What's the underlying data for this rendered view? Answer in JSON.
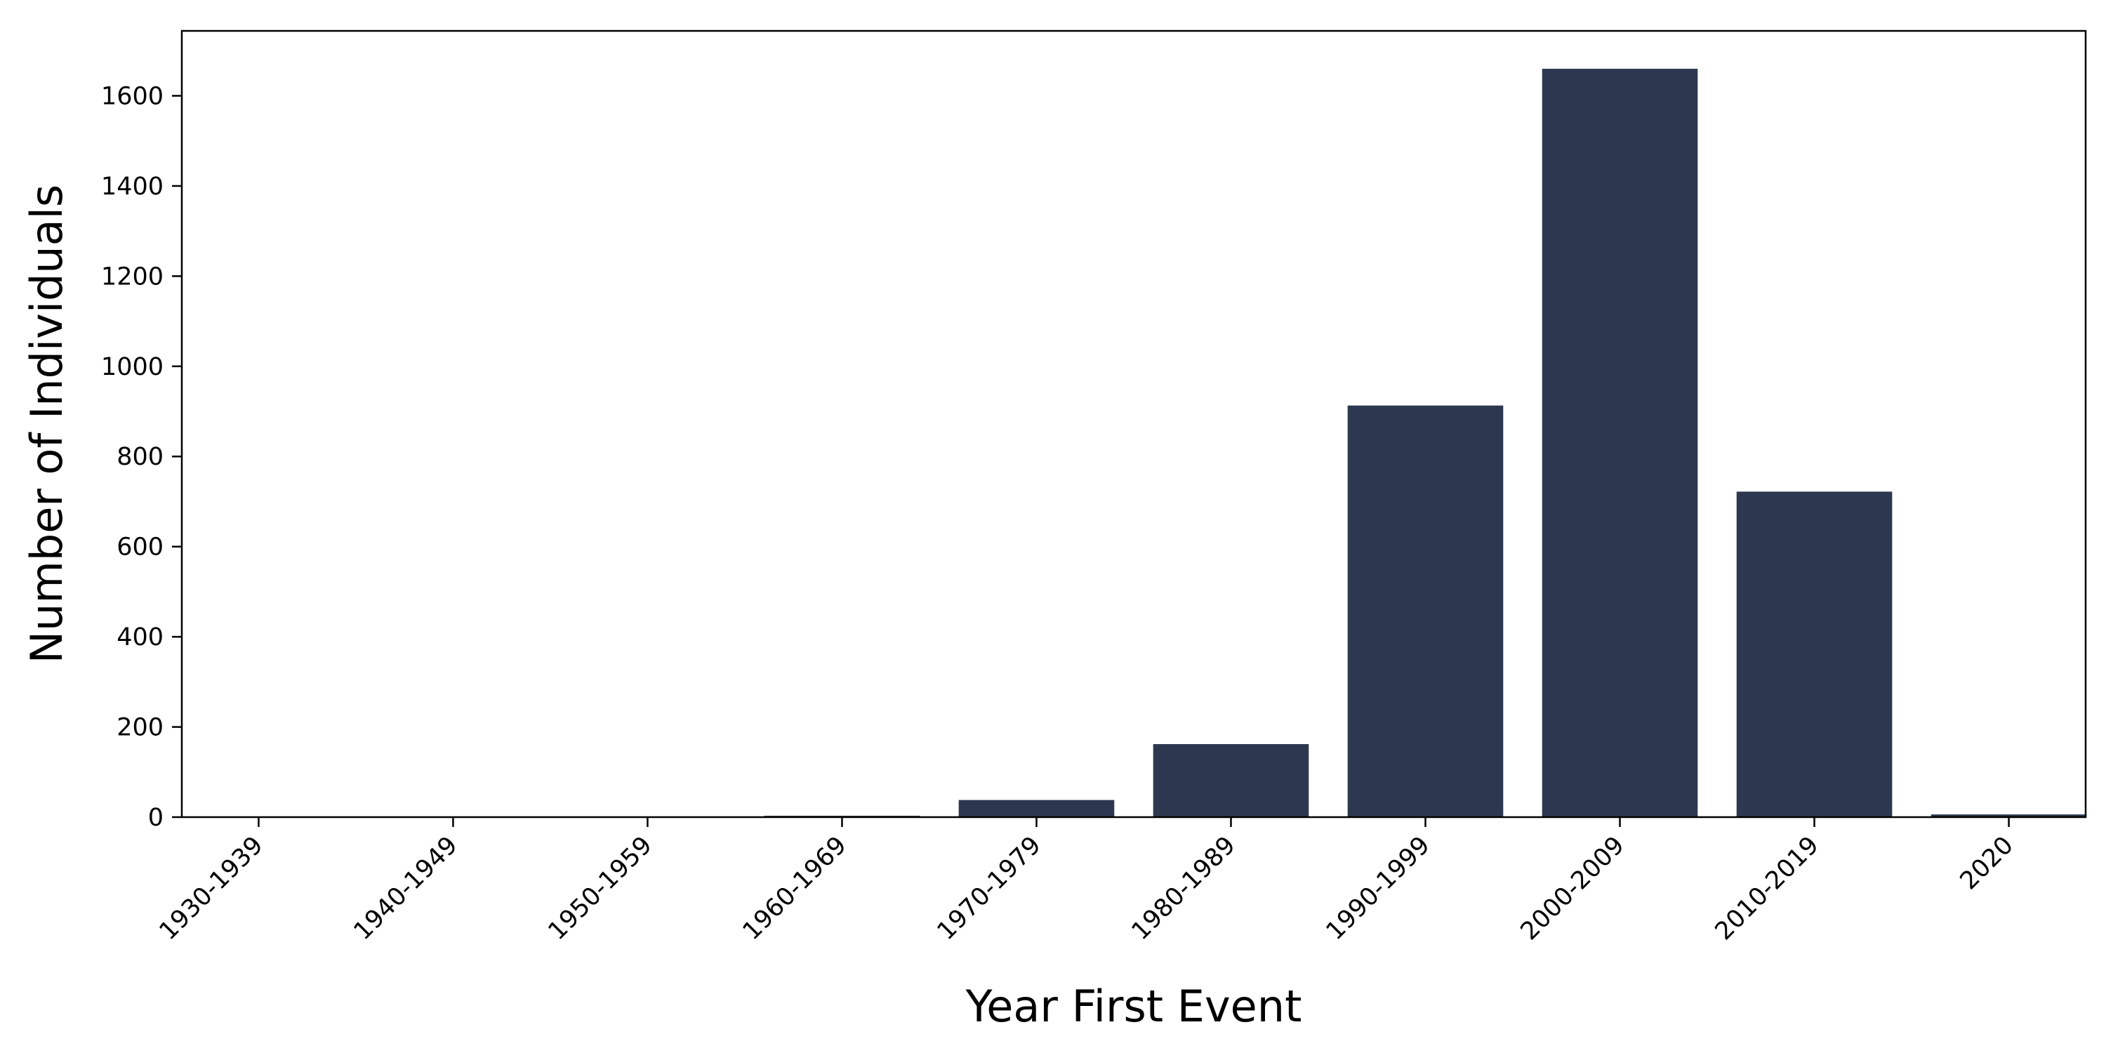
{
  "chart_data": {
    "type": "bar",
    "categories": [
      "1930-1939",
      "1940-1949",
      "1950-1959",
      "1960-1969",
      "1970-1979",
      "1980-1989",
      "1990-1999",
      "2000-2009",
      "2010-2019",
      "2020"
    ],
    "values": [
      0,
      0,
      0,
      3,
      38,
      162,
      913,
      1660,
      722,
      6
    ],
    "xlabel": "Year First Event",
    "ylabel": "Number of Individuals",
    "ylim": [
      0,
      1744
    ],
    "yticks": [
      0,
      200,
      400,
      600,
      800,
      1000,
      1200,
      1400,
      1600
    ],
    "yticklabels": [
      "0",
      "200",
      "400",
      "600",
      "800",
      "1000",
      "1200",
      "1400",
      "1600"
    ],
    "bar_color": "#2d3850",
    "grid": false,
    "legend": "none"
  }
}
